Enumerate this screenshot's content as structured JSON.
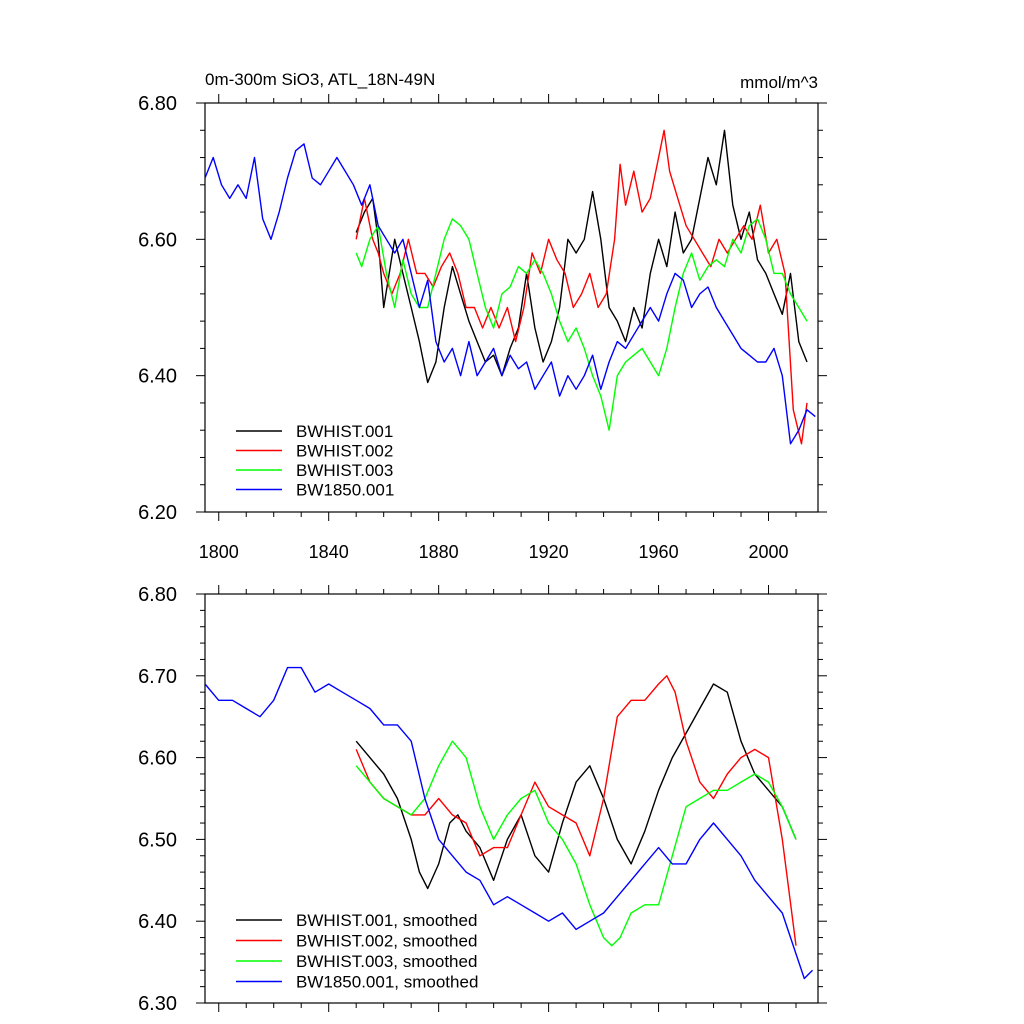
{
  "colors": {
    "black": "#000000",
    "red": "#ff0000",
    "green": "#00ff00",
    "blue": "#0000ff"
  },
  "chart_data": [
    {
      "type": "line",
      "title": "0m-300m SiO3, ATL_18N-49N",
      "units": "mmol/m^3",
      "xlabel": "",
      "ylabel": "",
      "xlim": [
        1795,
        2018
      ],
      "ylim": [
        6.2,
        6.8
      ],
      "x_ticks": [
        1800,
        1840,
        1880,
        1920,
        1960,
        2000
      ],
      "x_tick_labels": [
        "1800",
        "1840",
        "1880",
        "1920",
        "1960",
        "2000"
      ],
      "y_ticks": [
        6.2,
        6.4,
        6.6,
        6.8
      ],
      "y_tick_labels": [
        "6.20",
        "6.40",
        "6.60",
        "6.80"
      ],
      "legend_position": "bottom-left",
      "series": [
        {
          "name": "BWHIST.001",
          "color": "black",
          "x": [
            1850,
            1853,
            1856,
            1858,
            1860,
            1862,
            1864,
            1867,
            1870,
            1873,
            1876,
            1879,
            1882,
            1885,
            1888,
            1891,
            1894,
            1897,
            1900,
            1903,
            1906,
            1909,
            1912,
            1915,
            1918,
            1921,
            1924,
            1927,
            1930,
            1933,
            1936,
            1939,
            1942,
            1945,
            1948,
            1951,
            1954,
            1957,
            1960,
            1963,
            1966,
            1969,
            1972,
            1975,
            1978,
            1981,
            1984,
            1987,
            1990,
            1993,
            1996,
            1999,
            2002,
            2005,
            2008,
            2011,
            2014
          ],
          "y": [
            6.61,
            6.64,
            6.66,
            6.6,
            6.5,
            6.55,
            6.6,
            6.55,
            6.5,
            6.45,
            6.39,
            6.42,
            6.5,
            6.56,
            6.52,
            6.48,
            6.45,
            6.42,
            6.43,
            6.4,
            6.44,
            6.47,
            6.55,
            6.47,
            6.42,
            6.45,
            6.5,
            6.6,
            6.58,
            6.6,
            6.67,
            6.6,
            6.5,
            6.48,
            6.45,
            6.5,
            6.47,
            6.55,
            6.6,
            6.56,
            6.64,
            6.58,
            6.6,
            6.66,
            6.72,
            6.68,
            6.76,
            6.65,
            6.6,
            6.64,
            6.57,
            6.55,
            6.52,
            6.49,
            6.55,
            6.45,
            6.42
          ]
        },
        {
          "name": "BWHIST.002",
          "color": "red",
          "x": [
            1850,
            1853,
            1856,
            1858,
            1860,
            1863,
            1866,
            1869,
            1872,
            1875,
            1878,
            1881,
            1884,
            1887,
            1890,
            1893,
            1896,
            1899,
            1902,
            1905,
            1908,
            1911,
            1914,
            1917,
            1920,
            1923,
            1926,
            1929,
            1932,
            1935,
            1938,
            1941,
            1944,
            1946,
            1948,
            1951,
            1954,
            1957,
            1960,
            1962,
            1964,
            1967,
            1970,
            1973,
            1976,
            1979,
            1982,
            1985,
            1988,
            1991,
            1994,
            1997,
            2000,
            2003,
            2006,
            2009,
            2012,
            2014
          ],
          "y": [
            6.6,
            6.66,
            6.6,
            6.58,
            6.55,
            6.52,
            6.55,
            6.6,
            6.55,
            6.55,
            6.53,
            6.56,
            6.58,
            6.55,
            6.5,
            6.5,
            6.47,
            6.5,
            6.47,
            6.5,
            6.45,
            6.5,
            6.58,
            6.55,
            6.6,
            6.57,
            6.55,
            6.5,
            6.52,
            6.55,
            6.5,
            6.52,
            6.6,
            6.71,
            6.65,
            6.7,
            6.64,
            6.66,
            6.72,
            6.76,
            6.7,
            6.66,
            6.62,
            6.6,
            6.58,
            6.56,
            6.6,
            6.58,
            6.6,
            6.62,
            6.6,
            6.65,
            6.58,
            6.6,
            6.55,
            6.35,
            6.3,
            6.36
          ]
        },
        {
          "name": "BWHIST.003",
          "color": "green",
          "x": [
            1850,
            1852,
            1855,
            1858,
            1861,
            1864,
            1867,
            1870,
            1873,
            1876,
            1879,
            1882,
            1885,
            1888,
            1891,
            1894,
            1897,
            1900,
            1903,
            1906,
            1909,
            1912,
            1915,
            1918,
            1921,
            1924,
            1927,
            1930,
            1933,
            1936,
            1939,
            1942,
            1945,
            1948,
            1951,
            1954,
            1957,
            1960,
            1963,
            1966,
            1969,
            1972,
            1975,
            1978,
            1981,
            1984,
            1987,
            1990,
            1993,
            1996,
            1999,
            2002,
            2005,
            2008,
            2011,
            2014
          ],
          "y": [
            6.58,
            6.56,
            6.6,
            6.62,
            6.55,
            6.5,
            6.57,
            6.52,
            6.5,
            6.5,
            6.55,
            6.6,
            6.63,
            6.62,
            6.6,
            6.55,
            6.5,
            6.47,
            6.52,
            6.53,
            6.56,
            6.55,
            6.57,
            6.55,
            6.52,
            6.48,
            6.45,
            6.47,
            6.44,
            6.4,
            6.37,
            6.32,
            6.4,
            6.42,
            6.43,
            6.44,
            6.42,
            6.4,
            6.44,
            6.5,
            6.55,
            6.58,
            6.54,
            6.56,
            6.57,
            6.56,
            6.6,
            6.58,
            6.62,
            6.63,
            6.6,
            6.55,
            6.55,
            6.52,
            6.5,
            6.48
          ]
        },
        {
          "name": "BW1850.001",
          "color": "blue",
          "x": [
            1795,
            1798,
            1801,
            1804,
            1807,
            1810,
            1813,
            1816,
            1819,
            1822,
            1825,
            1828,
            1831,
            1834,
            1837,
            1840,
            1843,
            1846,
            1849,
            1852,
            1855,
            1858,
            1861,
            1864,
            1867,
            1870,
            1873,
            1876,
            1879,
            1882,
            1885,
            1888,
            1891,
            1894,
            1897,
            1900,
            1903,
            1906,
            1909,
            1912,
            1915,
            1918,
            1921,
            1924,
            1927,
            1930,
            1933,
            1936,
            1939,
            1942,
            1945,
            1948,
            1951,
            1954,
            1957,
            1960,
            1963,
            1966,
            1969,
            1972,
            1975,
            1978,
            1981,
            1984,
            1987,
            1990,
            1993,
            1996,
            1999,
            2002,
            2005,
            2008,
            2011,
            2014,
            2017
          ],
          "y": [
            6.69,
            6.72,
            6.68,
            6.66,
            6.68,
            6.66,
            6.72,
            6.63,
            6.6,
            6.64,
            6.69,
            6.73,
            6.74,
            6.69,
            6.68,
            6.7,
            6.72,
            6.7,
            6.68,
            6.65,
            6.68,
            6.62,
            6.6,
            6.58,
            6.6,
            6.55,
            6.5,
            6.54,
            6.45,
            6.42,
            6.44,
            6.4,
            6.45,
            6.4,
            6.42,
            6.44,
            6.4,
            6.43,
            6.41,
            6.42,
            6.38,
            6.4,
            6.42,
            6.37,
            6.4,
            6.38,
            6.4,
            6.43,
            6.38,
            6.42,
            6.45,
            6.44,
            6.46,
            6.48,
            6.5,
            6.48,
            6.52,
            6.55,
            6.54,
            6.5,
            6.52,
            6.53,
            6.5,
            6.48,
            6.46,
            6.44,
            6.43,
            6.42,
            6.42,
            6.44,
            6.4,
            6.3,
            6.32,
            6.35,
            6.34
          ]
        }
      ]
    },
    {
      "type": "line",
      "title": "",
      "xlabel": "",
      "ylabel": "",
      "xlim": [
        1795,
        2018
      ],
      "ylim": [
        6.3,
        6.8
      ],
      "x_ticks": [
        1800,
        1840,
        1880,
        1920,
        1960,
        2000
      ],
      "x_tick_labels": [],
      "y_ticks": [
        6.3,
        6.4,
        6.5,
        6.6,
        6.7,
        6.8
      ],
      "y_tick_labels": [
        "6.30",
        "6.40",
        "6.50",
        "6.60",
        "6.70",
        "6.80"
      ],
      "legend_position": "bottom-left",
      "series": [
        {
          "name": "BWHIST.001, smoothed",
          "color": "black",
          "x": [
            1850,
            1855,
            1860,
            1865,
            1870,
            1873,
            1876,
            1880,
            1884,
            1887,
            1890,
            1895,
            1900,
            1905,
            1910,
            1915,
            1920,
            1925,
            1930,
            1935,
            1940,
            1945,
            1950,
            1955,
            1960,
            1965,
            1970,
            1975,
            1980,
            1985,
            1990,
            1995,
            2000,
            2005,
            2010
          ],
          "y": [
            6.62,
            6.6,
            6.58,
            6.55,
            6.5,
            6.46,
            6.44,
            6.47,
            6.52,
            6.53,
            6.51,
            6.49,
            6.45,
            6.5,
            6.53,
            6.48,
            6.46,
            6.52,
            6.57,
            6.59,
            6.55,
            6.5,
            6.47,
            6.51,
            6.56,
            6.6,
            6.63,
            6.66,
            6.69,
            6.68,
            6.62,
            6.58,
            6.56,
            6.54,
            6.5
          ]
        },
        {
          "name": "BWHIST.002, smoothed",
          "color": "red",
          "x": [
            1850,
            1855,
            1860,
            1865,
            1870,
            1875,
            1880,
            1885,
            1890,
            1895,
            1900,
            1905,
            1910,
            1915,
            1920,
            1925,
            1930,
            1935,
            1940,
            1945,
            1950,
            1955,
            1960,
            1963,
            1966,
            1970,
            1975,
            1980,
            1985,
            1990,
            1995,
            2000,
            2005,
            2010
          ],
          "y": [
            6.61,
            6.57,
            6.55,
            6.54,
            6.53,
            6.53,
            6.55,
            6.53,
            6.52,
            6.48,
            6.49,
            6.49,
            6.53,
            6.57,
            6.54,
            6.53,
            6.52,
            6.48,
            6.55,
            6.65,
            6.67,
            6.67,
            6.69,
            6.7,
            6.68,
            6.62,
            6.57,
            6.55,
            6.58,
            6.6,
            6.61,
            6.6,
            6.5,
            6.37
          ]
        },
        {
          "name": "BWHIST.003, smoothed",
          "color": "green",
          "x": [
            1850,
            1855,
            1860,
            1865,
            1870,
            1875,
            1880,
            1885,
            1890,
            1895,
            1900,
            1905,
            1910,
            1915,
            1920,
            1925,
            1930,
            1935,
            1940,
            1943,
            1946,
            1950,
            1955,
            1960,
            1965,
            1970,
            1975,
            1980,
            1985,
            1990,
            1995,
            2000,
            2005,
            2010
          ],
          "y": [
            6.59,
            6.57,
            6.55,
            6.54,
            6.53,
            6.55,
            6.59,
            6.62,
            6.6,
            6.54,
            6.5,
            6.53,
            6.55,
            6.56,
            6.52,
            6.5,
            6.47,
            6.42,
            6.38,
            6.37,
            6.38,
            6.41,
            6.42,
            6.42,
            6.48,
            6.54,
            6.55,
            6.56,
            6.56,
            6.57,
            6.58,
            6.57,
            6.54,
            6.5
          ]
        },
        {
          "name": "BW1850.001, smoothed",
          "color": "blue",
          "x": [
            1795,
            1800,
            1805,
            1810,
            1815,
            1820,
            1825,
            1830,
            1835,
            1840,
            1845,
            1850,
            1855,
            1860,
            1865,
            1870,
            1875,
            1880,
            1885,
            1890,
            1895,
            1900,
            1905,
            1910,
            1915,
            1920,
            1925,
            1930,
            1935,
            1940,
            1945,
            1950,
            1955,
            1960,
            1965,
            1970,
            1975,
            1980,
            1985,
            1990,
            1995,
            2000,
            2005,
            2010,
            2013,
            2016
          ],
          "y": [
            6.69,
            6.67,
            6.67,
            6.66,
            6.65,
            6.67,
            6.71,
            6.71,
            6.68,
            6.69,
            6.68,
            6.67,
            6.66,
            6.64,
            6.64,
            6.62,
            6.55,
            6.5,
            6.48,
            6.46,
            6.45,
            6.42,
            6.43,
            6.42,
            6.41,
            6.4,
            6.41,
            6.39,
            6.4,
            6.41,
            6.43,
            6.45,
            6.47,
            6.49,
            6.47,
            6.47,
            6.5,
            6.52,
            6.5,
            6.48,
            6.45,
            6.43,
            6.41,
            6.36,
            6.33,
            6.34
          ]
        }
      ]
    }
  ]
}
